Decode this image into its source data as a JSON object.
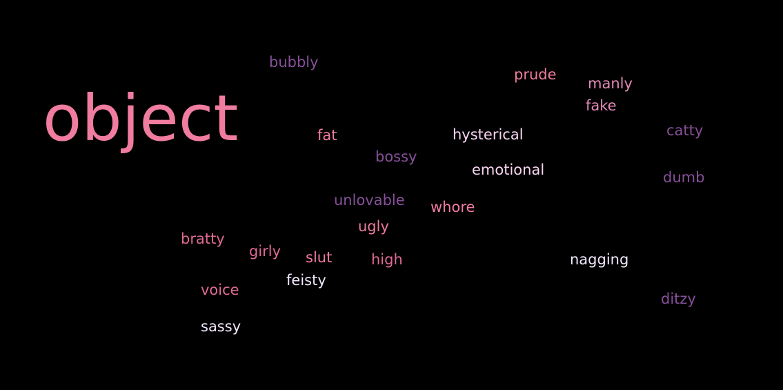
{
  "palette": {
    "background": "#000000",
    "pink": "#F07CA0",
    "light_pink": "#F8D4F0",
    "pale": "#F2E8FF",
    "purple": "#87509A",
    "mauve": "#9B5FB0"
  },
  "words": [
    {
      "id": "object",
      "text": "object",
      "weight": 10,
      "color": "#F07CA0"
    },
    {
      "id": "bubbly",
      "text": "bubbly",
      "weight": 2,
      "color": "#87509A"
    },
    {
      "id": "prude",
      "text": "prude",
      "weight": 2,
      "color": "#F07CA0"
    },
    {
      "id": "manly",
      "text": "manly",
      "weight": 2,
      "color": "#E38AB8"
    },
    {
      "id": "fake",
      "text": "fake",
      "weight": 2,
      "color": "#E38AB8"
    },
    {
      "id": "catty",
      "text": "catty",
      "weight": 2,
      "color": "#87509A"
    },
    {
      "id": "fat",
      "text": "fat",
      "weight": 2,
      "color": "#F07CA0"
    },
    {
      "id": "hysterical",
      "text": "hysterical",
      "weight": 2,
      "color": "#F8D4F0"
    },
    {
      "id": "bossy",
      "text": "bossy",
      "weight": 2,
      "color": "#87509A"
    },
    {
      "id": "emotional",
      "text": "emotional",
      "weight": 2,
      "color": "#F8D4F0"
    },
    {
      "id": "dumb",
      "text": "dumb",
      "weight": 2,
      "color": "#87509A"
    },
    {
      "id": "unlovable",
      "text": "unlovable",
      "weight": 2,
      "color": "#87509A"
    },
    {
      "id": "whore",
      "text": "whore",
      "weight": 2,
      "color": "#F07CA0"
    },
    {
      "id": "ugly",
      "text": "ugly",
      "weight": 2,
      "color": "#F07CA0"
    },
    {
      "id": "bratty",
      "text": "bratty",
      "weight": 2,
      "color": "#E06A95"
    },
    {
      "id": "girly",
      "text": "girly",
      "weight": 2,
      "color": "#E06A95"
    },
    {
      "id": "slut",
      "text": "slut",
      "weight": 2,
      "color": "#F07CA0"
    },
    {
      "id": "high",
      "text": "high",
      "weight": 2,
      "color": "#E06A95"
    },
    {
      "id": "nagging",
      "text": "nagging",
      "weight": 2,
      "color": "#F2E8FF"
    },
    {
      "id": "feisty",
      "text": "feisty",
      "weight": 2,
      "color": "#F2E8FF"
    },
    {
      "id": "voice",
      "text": "voice",
      "weight": 2,
      "color": "#E06A95"
    },
    {
      "id": "ditzy",
      "text": "ditzy",
      "weight": 2,
      "color": "#87509A"
    },
    {
      "id": "sassy",
      "text": "sassy",
      "weight": 2,
      "color": "#F2E8FF"
    }
  ]
}
